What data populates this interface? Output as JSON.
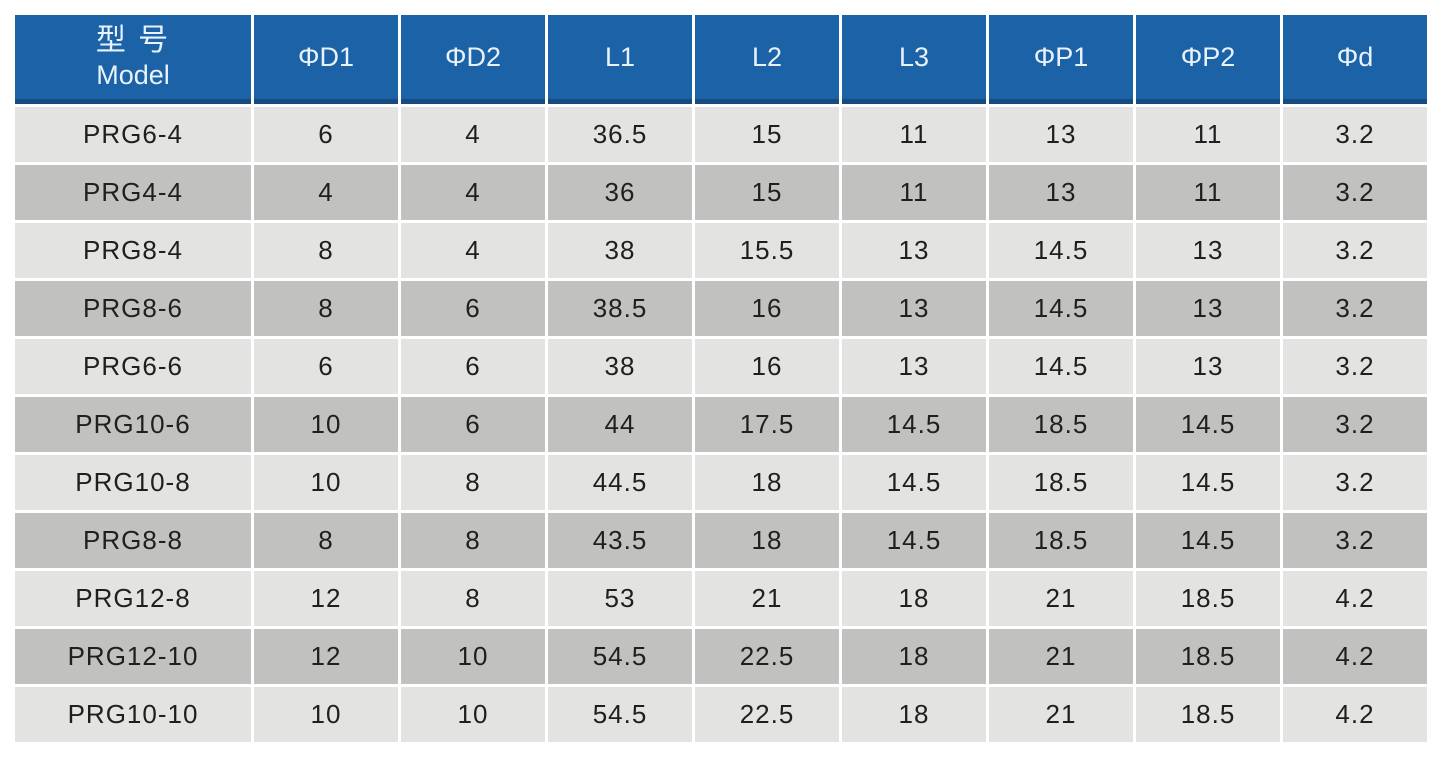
{
  "page": {
    "background_color": "#ffffff"
  },
  "colors": {
    "header_background": "#1c62a6",
    "header_bottom_border": "#174a80",
    "header_text": "#e9f2fa",
    "row_light": "#e3e3e1",
    "row_dark": "#c1c1bf",
    "cell_text": "#1f1f1f",
    "separator": "#ffffff"
  },
  "table": {
    "columns": [
      {
        "zh": "型 号",
        "en": "Model"
      },
      {
        "label": "ΦD1"
      },
      {
        "label": "ΦD2"
      },
      {
        "label": "L1"
      },
      {
        "label": "L2"
      },
      {
        "label": "L3"
      },
      {
        "label": "ΦP1"
      },
      {
        "label": "ΦP2"
      },
      {
        "label": "Φd"
      }
    ],
    "rows": [
      [
        "PRG6-4",
        "6",
        "4",
        "36.5",
        "15",
        "11",
        "13",
        "11",
        "3.2"
      ],
      [
        "PRG4-4",
        "4",
        "4",
        "36",
        "15",
        "11",
        "13",
        "11",
        "3.2"
      ],
      [
        "PRG8-4",
        "8",
        "4",
        "38",
        "15.5",
        "13",
        "14.5",
        "13",
        "3.2"
      ],
      [
        "PRG8-6",
        "8",
        "6",
        "38.5",
        "16",
        "13",
        "14.5",
        "13",
        "3.2"
      ],
      [
        "PRG6-6",
        "6",
        "6",
        "38",
        "16",
        "13",
        "14.5",
        "13",
        "3.2"
      ],
      [
        "PRG10-6",
        "10",
        "6",
        "44",
        "17.5",
        "14.5",
        "18.5",
        "14.5",
        "3.2"
      ],
      [
        "PRG10-8",
        "10",
        "8",
        "44.5",
        "18",
        "14.5",
        "18.5",
        "14.5",
        "3.2"
      ],
      [
        "PRG8-8",
        "8",
        "8",
        "43.5",
        "18",
        "14.5",
        "18.5",
        "14.5",
        "3.2"
      ],
      [
        "PRG12-8",
        "12",
        "8",
        "53",
        "21",
        "18",
        "21",
        "18.5",
        "4.2"
      ],
      [
        "PRG12-10",
        "12",
        "10",
        "54.5",
        "22.5",
        "18",
        "21",
        "18.5",
        "4.2"
      ],
      [
        "PRG10-10",
        "10",
        "10",
        "54.5",
        "22.5",
        "18",
        "21",
        "18.5",
        "4.2"
      ]
    ]
  }
}
